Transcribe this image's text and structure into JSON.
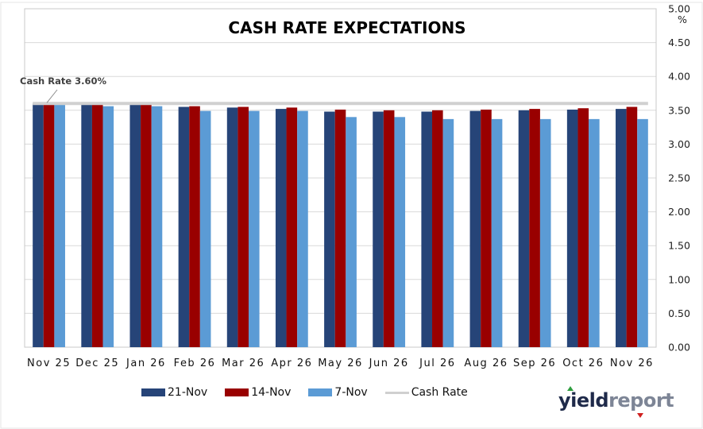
{
  "chart_data": {
    "type": "bar",
    "title": "CASH RATE EXPECTATIONS",
    "xlabel": "",
    "ylabel": "%",
    "ylim": [
      0,
      5
    ],
    "yticks": [
      "0.00",
      "0.50",
      "1.00",
      "1.50",
      "2.00",
      "2.50",
      "3.00",
      "3.50",
      "4.00",
      "4.50",
      "5.00"
    ],
    "y_axis_side": "right",
    "grid": true,
    "legend_position": "bottom",
    "categories": [
      "Nov 25",
      "Dec 25",
      "Jan 26",
      "Feb 26",
      "Mar 26",
      "Apr 26",
      "May 26",
      "Jun 26",
      "Jul 26",
      "Aug 26",
      "Sep 26",
      "Oct 26",
      "Nov 26"
    ],
    "series": [
      {
        "name": "21-Nov",
        "color": "#264478",
        "values": [
          3.6,
          3.58,
          3.58,
          3.55,
          3.54,
          3.52,
          3.48,
          3.48,
          3.48,
          3.49,
          3.5,
          3.51,
          3.52
        ]
      },
      {
        "name": "14-Nov",
        "color": "#990000",
        "values": [
          3.59,
          3.58,
          3.58,
          3.56,
          3.55,
          3.54,
          3.51,
          3.5,
          3.5,
          3.51,
          3.52,
          3.53,
          3.55
        ]
      },
      {
        "name": "7-Nov",
        "color": "#5B9BD5",
        "values": [
          3.58,
          3.56,
          3.56,
          3.49,
          3.49,
          3.49,
          3.4,
          3.4,
          3.37,
          3.37,
          3.37,
          3.37,
          3.37
        ]
      }
    ],
    "reference_line": {
      "name": "Cash Rate",
      "color": "#D0D0D0",
      "value": 3.6
    },
    "annotation": "Cash Rate 3.60%"
  },
  "legend": [
    {
      "label": "21-Nov",
      "color": "#264478",
      "kind": "bar"
    },
    {
      "label": "14-Nov",
      "color": "#990000",
      "kind": "bar"
    },
    {
      "label": "7-Nov",
      "color": "#5B9BD5",
      "kind": "bar"
    },
    {
      "label": "Cash Rate",
      "color": "#D0D0D0",
      "kind": "line"
    }
  ],
  "logo": {
    "part1": "yield",
    "part2": "report"
  }
}
